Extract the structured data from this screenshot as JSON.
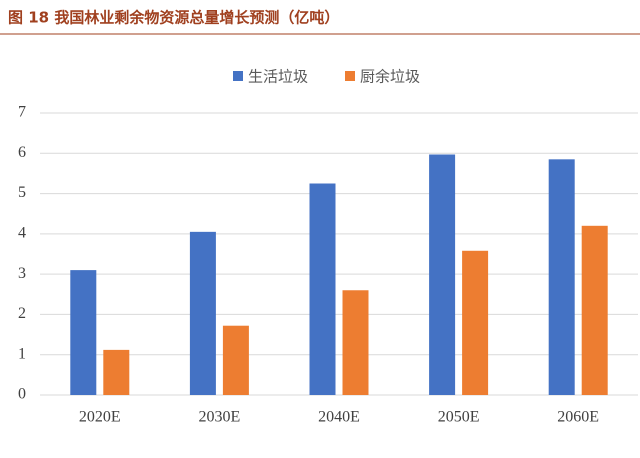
{
  "chart_data": {
    "type": "bar",
    "title": "图 18 我国林业剩余物资源总量增长预测（亿吨）",
    "categories": [
      "2020E",
      "2030E",
      "2040E",
      "2050E",
      "2060E"
    ],
    "series": [
      {
        "name": "生活垃圾",
        "color": "#4472c4",
        "values": [
          3.1,
          4.05,
          5.25,
          5.97,
          5.85
        ]
      },
      {
        "name": "厨余垃圾",
        "color": "#ed7d31",
        "values": [
          1.12,
          1.72,
          2.6,
          3.58,
          4.2
        ]
      }
    ],
    "ylim": [
      0,
      7
    ],
    "yticks": [
      0,
      1,
      2,
      3,
      4,
      5,
      6,
      7
    ],
    "grid": true,
    "legend": "top"
  }
}
